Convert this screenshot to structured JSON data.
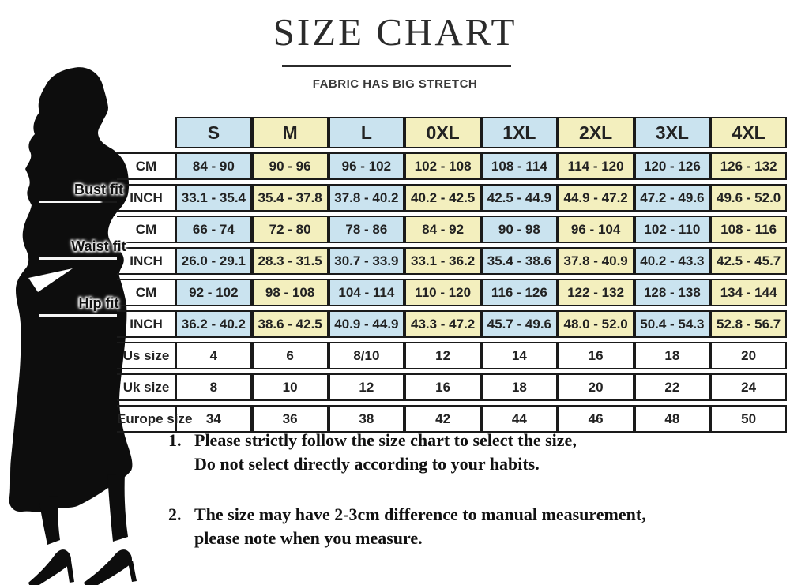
{
  "title": "SIZE CHART",
  "subtitle": "FABRIC HAS BIG STRETCH",
  "measures": [
    "Bust fit",
    "Waist fit",
    "Hip fit"
  ],
  "table": {
    "sizes": [
      "S",
      "M",
      "L",
      "0XL",
      "1XL",
      "2XL",
      "3XL",
      "4XL"
    ],
    "rows": [
      {
        "group": "Bust fit",
        "unit": "CM",
        "shaded": true,
        "values": [
          "84 - 90",
          "90 - 96",
          "96 - 102",
          "102 - 108",
          "108 - 114",
          "114 - 120",
          "120 - 126",
          "126 - 132"
        ]
      },
      {
        "group": "Bust fit",
        "unit": "INCH",
        "shaded": true,
        "values": [
          "33.1 - 35.4",
          "35.4 - 37.8",
          "37.8 - 40.2",
          "40.2 - 42.5",
          "42.5 - 44.9",
          "44.9 - 47.2",
          "47.2 - 49.6",
          "49.6 - 52.0"
        ]
      },
      {
        "group": "Waist fit",
        "unit": "CM",
        "shaded": true,
        "values": [
          "66 - 74",
          "72 - 80",
          "78 - 86",
          "84 - 92",
          "90 - 98",
          "96 - 104",
          "102 - 110",
          "108 - 116"
        ]
      },
      {
        "group": "Waist fit",
        "unit": "INCH",
        "shaded": true,
        "values": [
          "26.0 - 29.1",
          "28.3 - 31.5",
          "30.7 - 33.9",
          "33.1 - 36.2",
          "35.4 - 38.6",
          "37.8 - 40.9",
          "40.2 - 43.3",
          "42.5 - 45.7"
        ]
      },
      {
        "group": "Hip fit",
        "unit": "CM",
        "shaded": true,
        "values": [
          "92 - 102",
          "98 - 108",
          "104 - 114",
          "110 - 120",
          "116 - 126",
          "122 - 132",
          "128 - 138",
          "134 - 144"
        ]
      },
      {
        "group": "Hip fit",
        "unit": "INCH",
        "shaded": true,
        "values": [
          "36.2 - 40.2",
          "38.6 - 42.5",
          "40.9 - 44.9",
          "43.3 - 47.2",
          "45.7 - 49.6",
          "48.0 - 52.0",
          "50.4 - 54.3",
          "52.8 - 56.7"
        ]
      },
      {
        "group": "",
        "unit": "Us size",
        "shaded": false,
        "values": [
          "4",
          "6",
          "8/10",
          "12",
          "14",
          "16",
          "18",
          "20"
        ]
      },
      {
        "group": "",
        "unit": "Uk size",
        "shaded": false,
        "values": [
          "8",
          "10",
          "12",
          "16",
          "18",
          "20",
          "22",
          "24"
        ]
      },
      {
        "group": "",
        "unit": "Europe size",
        "shaded": false,
        "values": [
          "34",
          "36",
          "38",
          "42",
          "44",
          "46",
          "48",
          "50"
        ]
      }
    ]
  },
  "notes": [
    {
      "number": "1.",
      "lines": [
        "Please strictly follow the size chart to select the size,",
        "Do not select directly according to your habits."
      ]
    },
    {
      "number": "2.",
      "lines": [
        "The size may have 2-3cm difference  to manual measurement,",
        "please note when you measure."
      ]
    }
  ],
  "colors": {
    "column_blue": "#cae3ef",
    "column_yellow": "#f3efbe",
    "table_border": "#1a1a1a",
    "silhouette": "#0d0d0d"
  }
}
